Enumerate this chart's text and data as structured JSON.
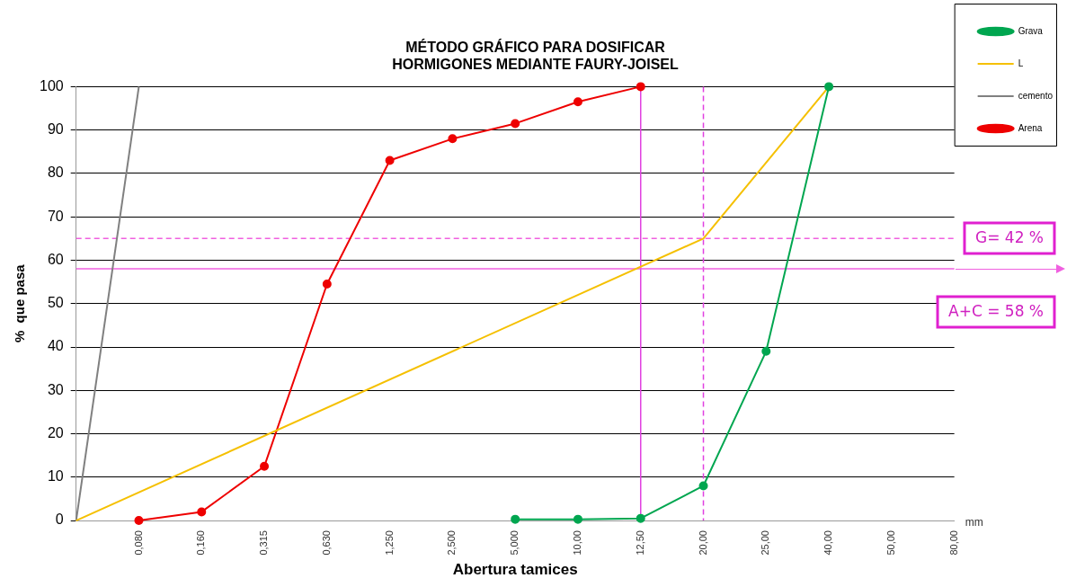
{
  "chart_data": {
    "type": "line",
    "title": "MÉTODO GRÁFICO PARA DOSIFICAR\nHORMIGONES MEDIANTE FAURY-JOISEL",
    "xlabel": "Abertura tamices",
    "ylabel": "%  que pasa",
    "categories": [
      null,
      "0,080",
      "0,160",
      "0,315",
      "0,630",
      "1,250",
      "2,500",
      "5,000",
      "10,00",
      "12,50",
      "20,00",
      "25,00",
      "40,00",
      "50,00",
      "80,00"
    ],
    "series": [
      {
        "name": "Grava",
        "color": "#00a650",
        "marker": "circle",
        "values": [
          null,
          null,
          null,
          null,
          null,
          null,
          null,
          0.3,
          0.3,
          0.5,
          8,
          39,
          100,
          null,
          null
        ]
      },
      {
        "name": "L",
        "color": "#f5c000",
        "marker": "none",
        "values": [
          0,
          null,
          null,
          null,
          null,
          null,
          null,
          null,
          null,
          null,
          65,
          null,
          100,
          null,
          null
        ]
      },
      {
        "name": "cemento",
        "color": "#808080",
        "marker": "none",
        "values": [
          0,
          100,
          null,
          null,
          null,
          null,
          null,
          null,
          null,
          null,
          null,
          null,
          null,
          null,
          null
        ]
      },
      {
        "name": "Arena",
        "color": "#ee0000",
        "marker": "circle",
        "values": [
          null,
          0,
          2,
          12.5,
          54.5,
          83,
          88,
          91.5,
          96.5,
          100,
          null,
          null,
          null,
          null,
          null
        ]
      }
    ],
    "ylim": [
      0,
      100
    ],
    "yticks": [
      0,
      10,
      20,
      30,
      40,
      50,
      60,
      70,
      80,
      90,
      100
    ],
    "grid": "y",
    "legend": "top right",
    "ref_lines": [
      {
        "axis": "x",
        "value": "12,50",
        "color": "#e040e0",
        "line_style": "solid"
      },
      {
        "axis": "x",
        "value": "20,00",
        "color": "#e040e0",
        "line_style": "dashed"
      },
      {
        "axis": "y",
        "value": 65,
        "color": "#f060e0",
        "line_style": "dashed"
      },
      {
        "axis": "y",
        "value": 58,
        "color": "#f060e0",
        "line_style": "solid"
      }
    ],
    "annotations": [
      "mm",
      "G= 42 %",
      "A+C = 58 %"
    ]
  }
}
